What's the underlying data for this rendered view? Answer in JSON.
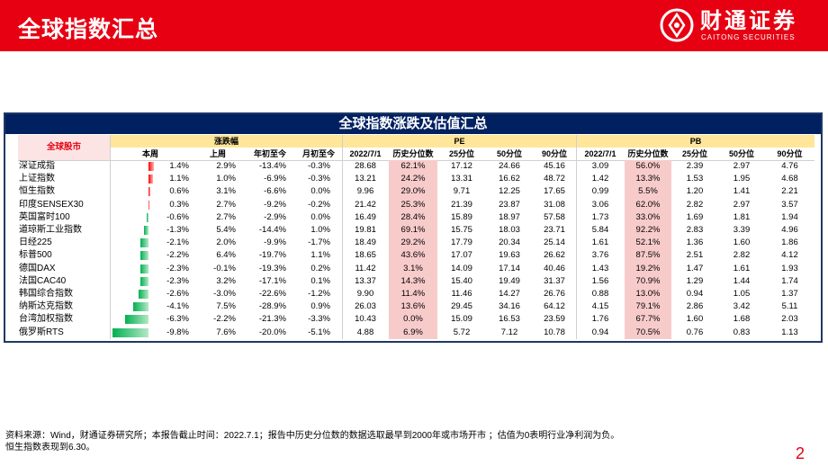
{
  "header": {
    "title": "全球指数汇总",
    "brand_cn": "财通证券",
    "brand_en": "CAITONG SECURITIES",
    "logo_icon": "caitong-logo-icon"
  },
  "table": {
    "title": "全球指数涨跌及估值汇总",
    "corner_label": "全球股市",
    "groups": {
      "change": "涨跌幅",
      "pe": "PE",
      "pb": "PB"
    },
    "columns": [
      "本周",
      "上周",
      "年初至今",
      "月初至今",
      "2022/7/1",
      "历史分位数",
      "25分位",
      "50分位",
      "90分位",
      "2022/7/1",
      "历史分位数",
      "25分位",
      "50分位",
      "90分位"
    ],
    "rows": [
      {
        "name": "深证成指",
        "cells": [
          "1.4%",
          "2.9%",
          "-13.4%",
          "-0.3%",
          "28.68",
          "62.1%",
          "17.12",
          "24.66",
          "45.16",
          "3.09",
          "56.0%",
          "2.39",
          "2.97",
          "4.76"
        ]
      },
      {
        "name": "上证指数",
        "cells": [
          "1.1%",
          "1.0%",
          "-6.9%",
          "-0.3%",
          "13.21",
          "24.2%",
          "13.31",
          "16.62",
          "48.72",
          "1.42",
          "13.3%",
          "1.53",
          "1.95",
          "4.68"
        ]
      },
      {
        "name": "恒生指数",
        "cells": [
          "0.6%",
          "3.1%",
          "-6.6%",
          "0.0%",
          "9.96",
          "29.0%",
          "9.71",
          "12.25",
          "17.65",
          "0.99",
          "5.5%",
          "1.20",
          "1.41",
          "2.21"
        ]
      },
      {
        "name": "印度SENSEX30",
        "cells": [
          "0.3%",
          "2.7%",
          "-9.2%",
          "-0.2%",
          "21.42",
          "25.3%",
          "21.39",
          "23.87",
          "31.08",
          "3.06",
          "62.0%",
          "2.82",
          "2.97",
          "3.57"
        ]
      },
      {
        "name": "英国富时100",
        "cells": [
          "-0.6%",
          "2.7%",
          "-2.9%",
          "0.0%",
          "16.49",
          "28.4%",
          "15.89",
          "18.97",
          "57.58",
          "1.73",
          "33.0%",
          "1.69",
          "1.81",
          "1.94"
        ]
      },
      {
        "name": "道琼斯工业指数",
        "cells": [
          "-1.3%",
          "5.4%",
          "-14.4%",
          "1.0%",
          "19.81",
          "69.1%",
          "15.75",
          "18.03",
          "23.71",
          "5.84",
          "92.2%",
          "2.83",
          "3.39",
          "4.96"
        ]
      },
      {
        "name": "日经225",
        "cells": [
          "-2.1%",
          "2.0%",
          "-9.9%",
          "-1.7%",
          "18.49",
          "29.2%",
          "17.79",
          "20.34",
          "25.14",
          "1.61",
          "52.1%",
          "1.36",
          "1.60",
          "1.86"
        ]
      },
      {
        "name": "标普500",
        "cells": [
          "-2.2%",
          "6.4%",
          "-19.7%",
          "1.1%",
          "18.65",
          "43.6%",
          "17.07",
          "19.63",
          "26.62",
          "3.76",
          "87.5%",
          "2.51",
          "2.82",
          "4.12"
        ]
      },
      {
        "name": "德国DAX",
        "cells": [
          "-2.3%",
          "-0.1%",
          "-19.3%",
          "0.2%",
          "11.42",
          "3.1%",
          "14.09",
          "17.14",
          "40.46",
          "1.43",
          "19.2%",
          "1.47",
          "1.61",
          "1.93"
        ]
      },
      {
        "name": "法国CAC40",
        "cells": [
          "-2.3%",
          "3.2%",
          "-17.1%",
          "0.1%",
          "13.37",
          "14.3%",
          "15.40",
          "19.49",
          "31.37",
          "1.56",
          "70.9%",
          "1.29",
          "1.44",
          "1.74"
        ]
      },
      {
        "name": "韩国综合指数",
        "cells": [
          "-2.6%",
          "-3.0%",
          "-22.6%",
          "-1.2%",
          "9.90",
          "11.4%",
          "11.46",
          "14.27",
          "26.76",
          "0.88",
          "13.0%",
          "0.94",
          "1.05",
          "1.37"
        ]
      },
      {
        "name": "纳斯达克指数",
        "cells": [
          "-4.1%",
          "7.5%",
          "-28.9%",
          "0.9%",
          "26.03",
          "13.6%",
          "29.45",
          "34.16",
          "64.12",
          "4.15",
          "79.1%",
          "2.86",
          "3.42",
          "5.11"
        ]
      },
      {
        "name": "台湾加权指数",
        "cells": [
          "-6.3%",
          "-2.2%",
          "-21.3%",
          "-3.3%",
          "10.43",
          "0.0%",
          "15.09",
          "16.53",
          "23.59",
          "1.76",
          "67.7%",
          "1.60",
          "1.68",
          "2.03"
        ]
      },
      {
        "name": "俄罗斯RTS",
        "cells": [
          "-9.8%",
          "7.6%",
          "-20.0%",
          "-5.1%",
          "4.88",
          "6.9%",
          "5.72",
          "7.12",
          "10.78",
          "0.94",
          "70.5%",
          "0.76",
          "0.83",
          "1.13"
        ]
      }
    ]
  },
  "footer": {
    "source": "资料来源：Wind，财通证券研究所；本报告截止时间：2022.7.1；报告中历史分位数的数据选取最早到2000年或市场开市 ；估值为0表明行业净利润为负。",
    "note": "恒生指数表现到6.30。",
    "page_number": "2"
  },
  "colors": {
    "brand_red": "#e60012",
    "navy": "#002060",
    "group_header": "#ffe699",
    "corner_header": "#fce4e4",
    "percentile_fill": "#f8cbcb",
    "bar_positive": "#ff0000",
    "bar_negative": "#00b050"
  }
}
